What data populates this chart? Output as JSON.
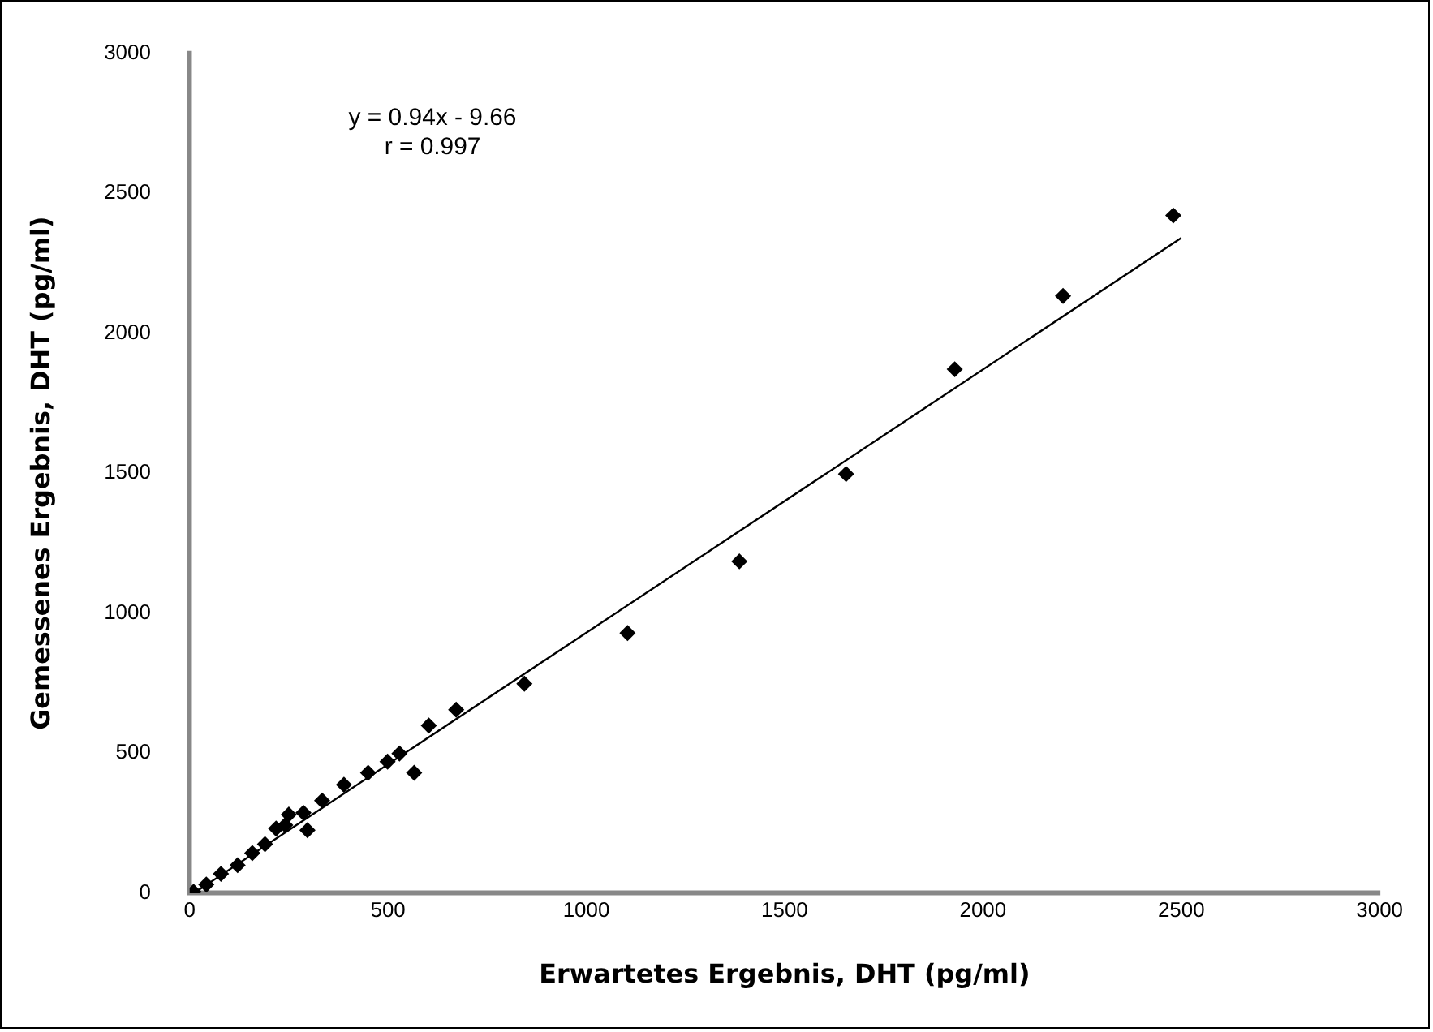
{
  "chart_data": {
    "type": "scatter",
    "xlabel": "Erwartetes Ergebnis, DHT (pg/ml)",
    "ylabel": "Gemessenes Ergebnis, DHT (pg/ml)",
    "annotations": [
      "y = 0.94x - 9.66",
      "r = 0.997"
    ],
    "xlim": [
      0,
      3000
    ],
    "xticks": [
      0,
      500,
      1000,
      1500,
      2000,
      2500,
      3000
    ],
    "ylim": [
      0,
      3000
    ],
    "yticks": [
      0,
      500,
      1000,
      1500,
      2000,
      2500,
      3000
    ],
    "grid": false,
    "legend": false,
    "marker": "diamond",
    "series": [
      {
        "color": "#000000",
        "x": [
          10,
          42,
          79,
          121,
          158,
          190,
          218,
          241,
          250,
          287,
          297,
          334,
          389,
          450,
          499,
          529,
          566,
          603,
          672,
          844,
          1104,
          1386,
          1655,
          1929,
          2202,
          2480
        ],
        "values": [
          5,
          31,
          69,
          100,
          143,
          175,
          231,
          243,
          281,
          287,
          225,
          331,
          387,
          430,
          470,
          499,
          430,
          599,
          655,
          748,
          929,
          1185,
          1497,
          1871,
          2133,
          2420
        ]
      },
      {
        "type": "line",
        "color": "#000000",
        "marker": "none",
        "x": [
          20,
          2500
        ],
        "values": [
          9,
          2340
        ]
      }
    ]
  }
}
